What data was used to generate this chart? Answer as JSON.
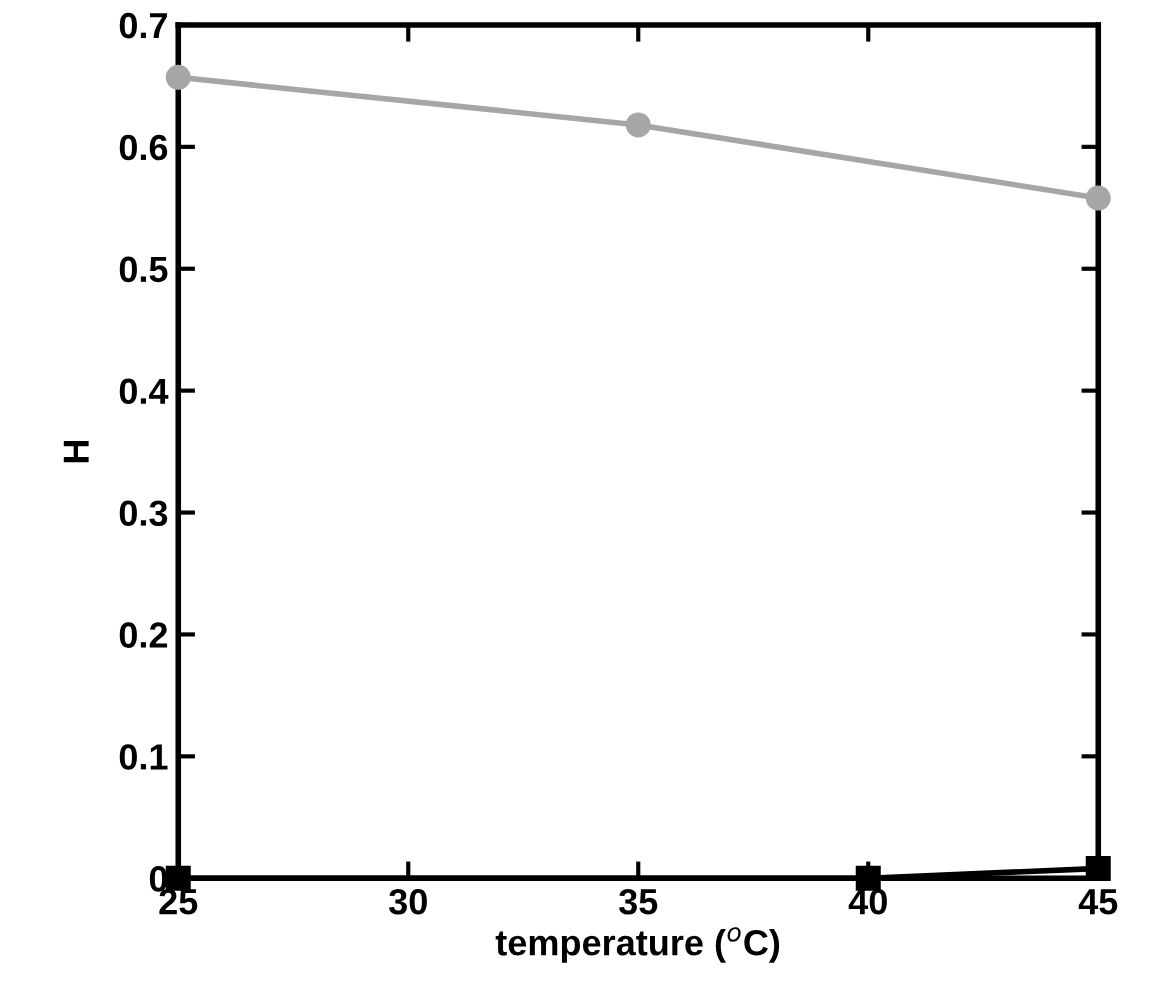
{
  "chart_data": {
    "type": "line",
    "xlabel": "temperature ($^{o}$C)",
    "ylabel": "H",
    "xlim": [
      25,
      45
    ],
    "ylim": [
      0,
      0.7
    ],
    "xticks": [
      25,
      30,
      35,
      40,
      45
    ],
    "yticks": [
      0,
      0.1,
      0.2,
      0.3,
      0.4,
      0.5,
      0.6,
      0.7
    ],
    "grid": false,
    "line_style": "solid",
    "series": [
      {
        "color": "#a6a6a6",
        "marker": "circle",
        "x": [
          25,
          35,
          45
        ],
        "values": [
          0.657,
          0.618,
          0.558
        ]
      },
      {
        "color": "#000000",
        "marker": "square",
        "x": [
          25,
          40,
          45
        ],
        "values": [
          0,
          0,
          0.008
        ]
      }
    ]
  }
}
